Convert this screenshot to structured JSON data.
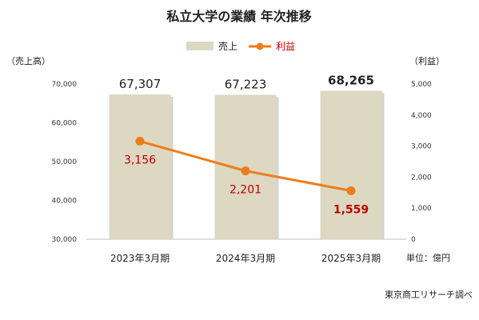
{
  "chart_data": {
    "type": "bar",
    "title": "私立大学の業績 年次推移",
    "categories": [
      "2023年3月期",
      "2024年3月期",
      "2025年3月期"
    ],
    "series": [
      {
        "name": "売上",
        "type": "bar",
        "axis": "left",
        "values": [
          67307,
          67223,
          68265
        ],
        "labels": [
          "67,307",
          "67,223",
          "68,265"
        ]
      },
      {
        "name": "利益",
        "type": "line",
        "axis": "right",
        "values": [
          3156,
          2201,
          1559
        ],
        "labels": [
          "3,156",
          "2,201",
          "1,559"
        ]
      }
    ],
    "y_left": {
      "label": "（売上高）",
      "range": [
        30000,
        70000
      ],
      "ticks": [
        "30,000",
        "40,000",
        "50,000",
        "60,000",
        "70,000"
      ],
      "tick_values": [
        30000,
        40000,
        50000,
        60000,
        70000
      ]
    },
    "y_right": {
      "label": "（利益）",
      "range": [
        0,
        5000
      ],
      "ticks": [
        "0",
        "1,000",
        "2,000",
        "3,000",
        "4,000",
        "5,000"
      ],
      "tick_values": [
        0,
        1000,
        2000,
        3000,
        4000,
        5000
      ]
    },
    "unit_note": "単位：億円",
    "source": "東京商工リサーチ調べ",
    "legend_position": "top-center",
    "grid": false,
    "colors": {
      "bar": "#ddd8c2",
      "line": "#ed7d1c",
      "line_label": "#c00000",
      "text": "#222222"
    }
  }
}
